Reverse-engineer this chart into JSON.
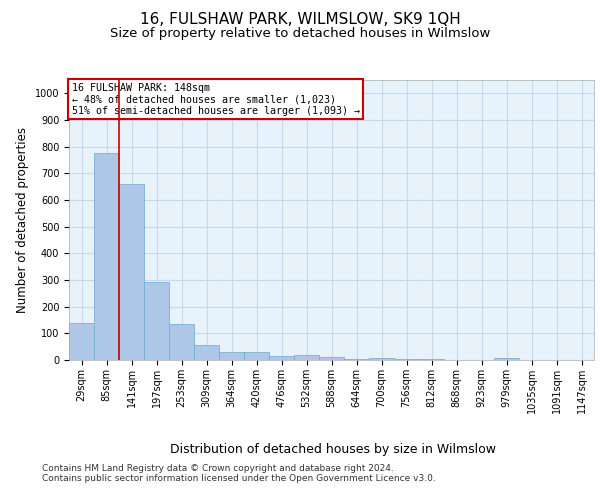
{
  "title": "16, FULSHAW PARK, WILMSLOW, SK9 1QH",
  "subtitle": "Size of property relative to detached houses in Wilmslow",
  "xlabel": "Distribution of detached houses by size in Wilmslow",
  "ylabel": "Number of detached properties",
  "bar_labels": [
    "29sqm",
    "85sqm",
    "141sqm",
    "197sqm",
    "253sqm",
    "309sqm",
    "364sqm",
    "420sqm",
    "476sqm",
    "532sqm",
    "588sqm",
    "644sqm",
    "700sqm",
    "756sqm",
    "812sqm",
    "868sqm",
    "923sqm",
    "979sqm",
    "1035sqm",
    "1091sqm",
    "1147sqm"
  ],
  "bar_values": [
    140,
    778,
    660,
    291,
    135,
    56,
    30,
    30,
    15,
    20,
    10,
    5,
    8,
    3,
    5,
    0,
    0,
    8,
    0,
    0,
    0
  ],
  "bar_color": "#aec6e8",
  "bar_edge_color": "#6aaad4",
  "annotation_text": "16 FULSHAW PARK: 148sqm\n← 48% of detached houses are smaller (1,023)\n51% of semi-detached houses are larger (1,093) →",
  "annotation_box_color": "#ffffff",
  "annotation_box_edge": "#cc0000",
  "vline_color": "#cc0000",
  "ylim": [
    0,
    1050
  ],
  "yticks": [
    0,
    100,
    200,
    300,
    400,
    500,
    600,
    700,
    800,
    900,
    1000
  ],
  "grid_color": "#c8d8e8",
  "background_color": "#e8f2fb",
  "footer_line1": "Contains HM Land Registry data © Crown copyright and database right 2024.",
  "footer_line2": "Contains public sector information licensed under the Open Government Licence v3.0.",
  "title_fontsize": 11,
  "subtitle_fontsize": 9.5,
  "tick_fontsize": 7,
  "ylabel_fontsize": 8.5,
  "xlabel_fontsize": 9,
  "footer_fontsize": 6.5
}
